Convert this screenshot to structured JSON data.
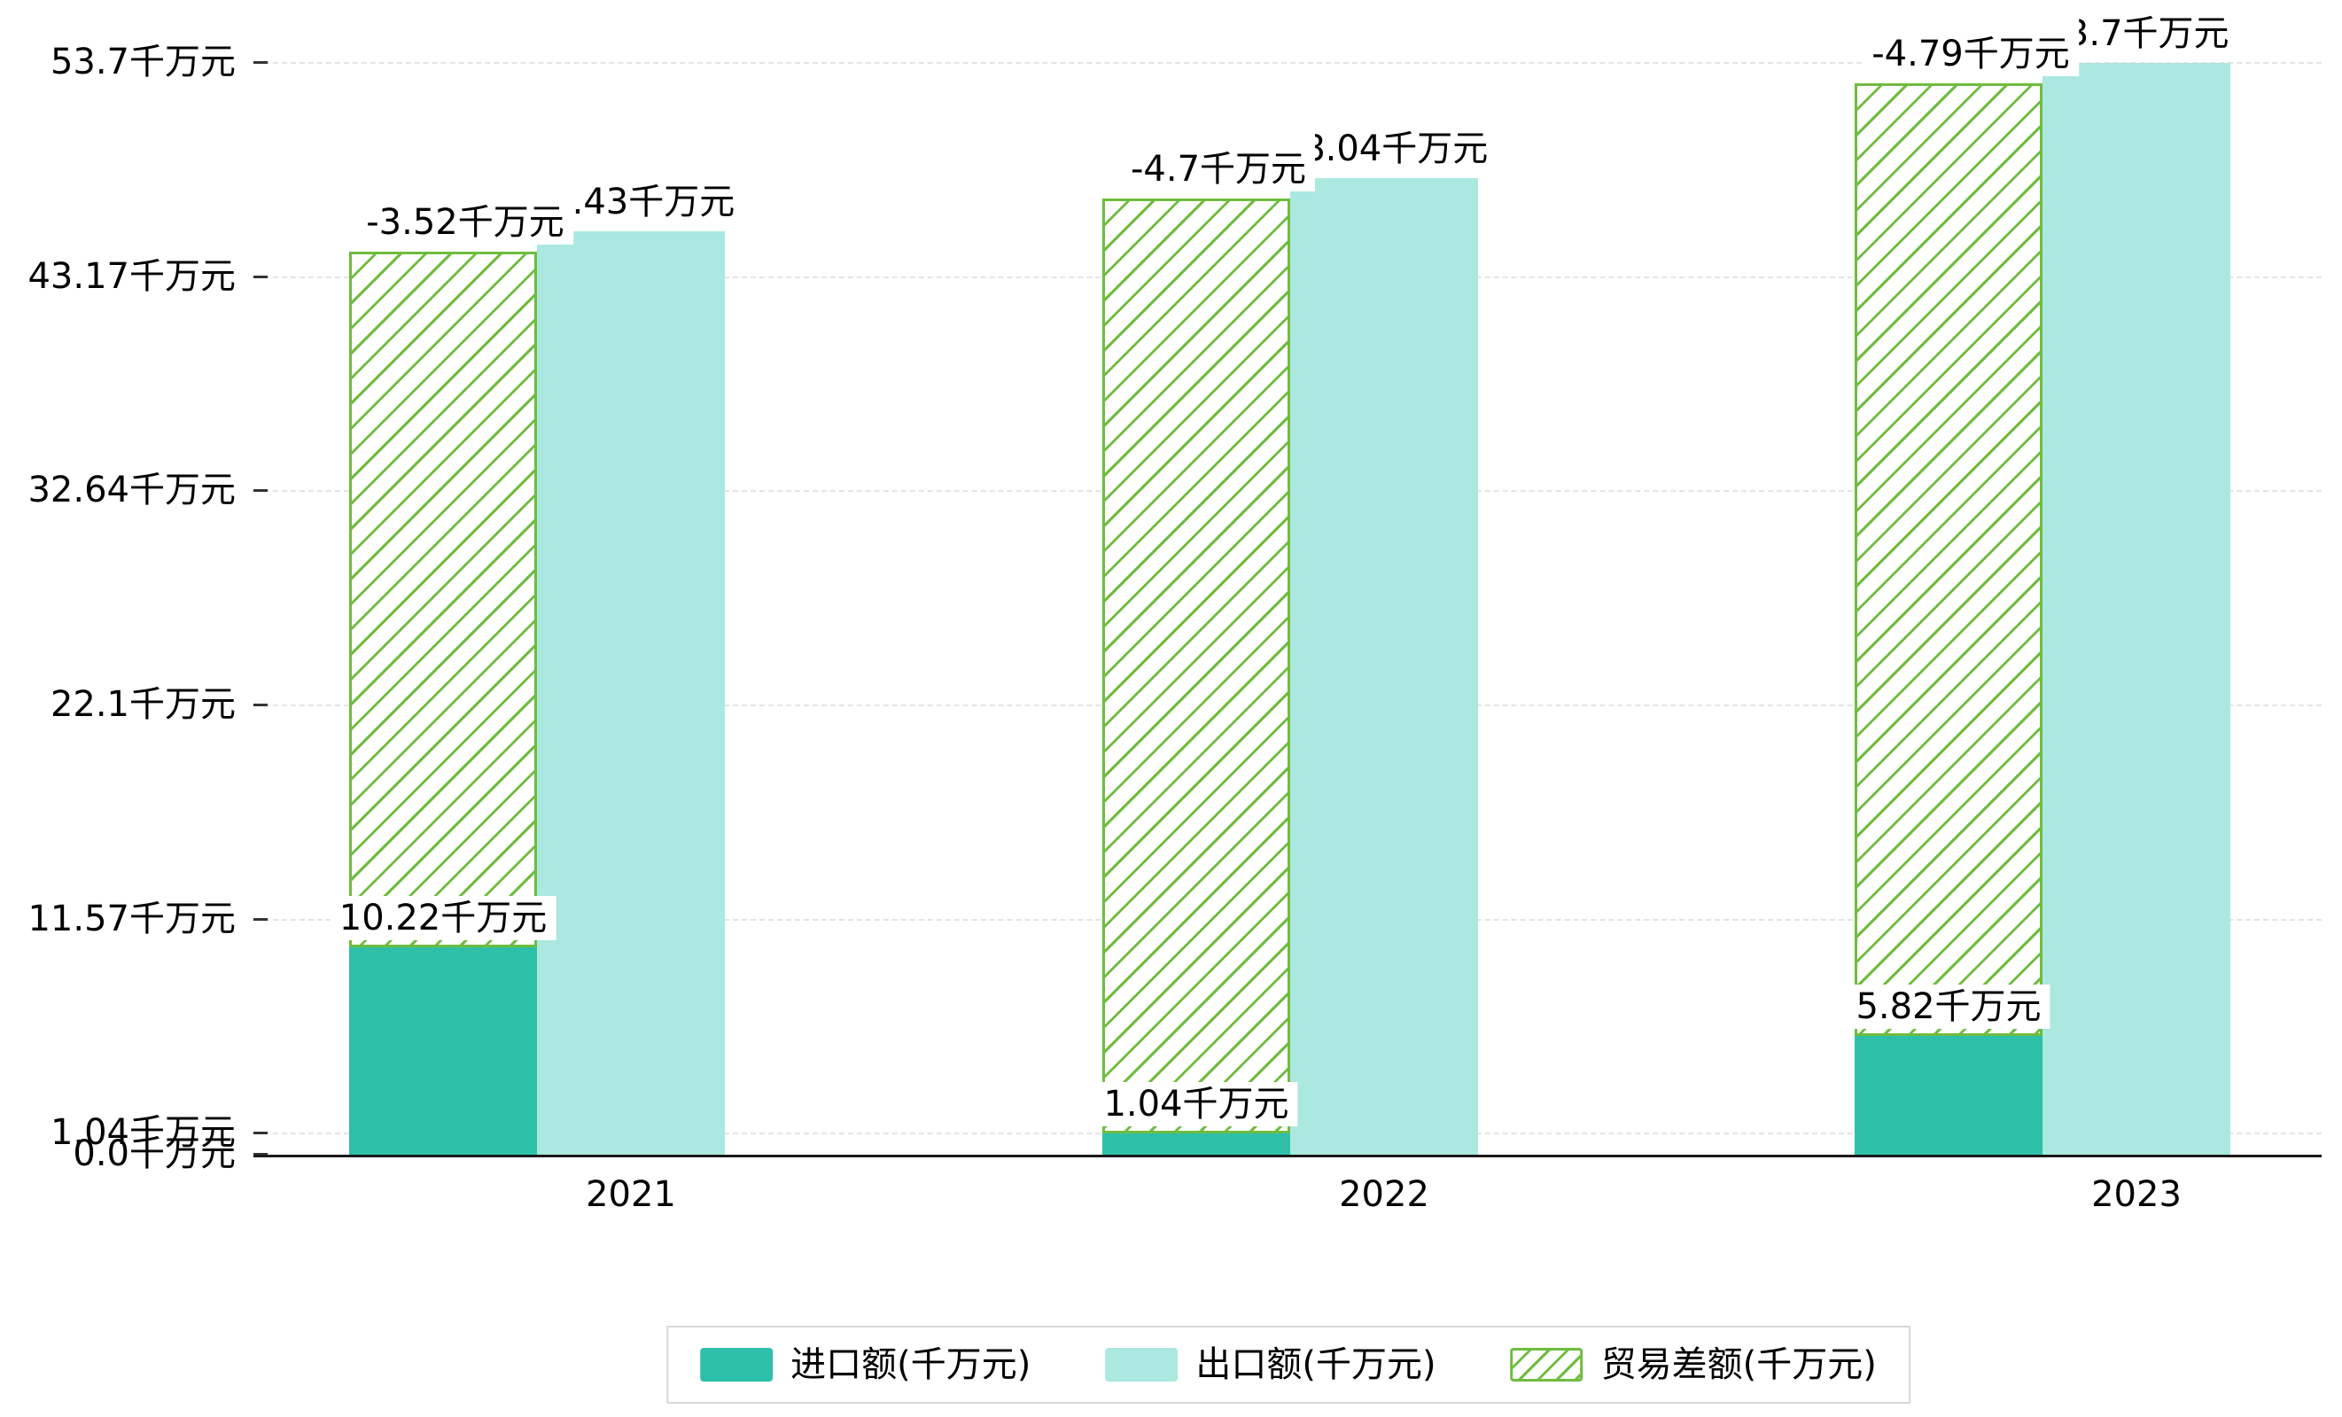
{
  "chart_data": {
    "type": "bar",
    "title": "",
    "categories": [
      "2021",
      "2022",
      "2023"
    ],
    "unit": "千万元",
    "series": [
      {
        "name": "进口额(千万元)",
        "values": [
          10.22,
          1.04,
          5.82
        ],
        "labels": [
          "10.22千万元",
          "1.04千万元",
          "5.82千万元"
        ],
        "color": "#2ebfa9"
      },
      {
        "name": "出口额(千万元)",
        "values": [
          45.43,
          48.04,
          53.7
        ],
        "labels": [
          "45.43千万元",
          "48.04千万元",
          "53.7千万元"
        ],
        "color": "#abe8df"
      },
      {
        "name": "贸易差额(千万元)",
        "values": [
          -3.52,
          -4.7,
          -4.79
        ],
        "labels": [
          "-3.52千万元",
          "-4.7千万元",
          "-4.79千万元"
        ],
        "color": "#6fbc3f",
        "style": "hatched",
        "bar_span": "from import value up to export value"
      }
    ],
    "y_axis": {
      "ticks": [
        {
          "label": "0.0千万元",
          "value": 0.0
        },
        {
          "label": "1.04千万元",
          "value": 1.04
        },
        {
          "label": "11.57千万元",
          "value": 11.57
        },
        {
          "label": "22.1千万元",
          "value": 22.1
        },
        {
          "label": "32.64千万元",
          "value": 32.64
        },
        {
          "label": "43.17千万元",
          "value": 43.17
        },
        {
          "label": "53.7千万元",
          "value": 53.7
        }
      ],
      "range": [
        0,
        53.7
      ]
    },
    "x_axis": {
      "labels": [
        "2021",
        "2022",
        "2023"
      ]
    },
    "grid": "horizontal dashed",
    "legend_position": "bottom-center"
  },
  "colors": {
    "import_bar": "#2ebfa9",
    "export_bar": "#abe8df",
    "balance_hatch": "#6fbc3f",
    "gridline": "#e4e4e4",
    "axis": "#1a1a1a",
    "legend_border": "#d8d8d8",
    "background": "#ffffff"
  }
}
